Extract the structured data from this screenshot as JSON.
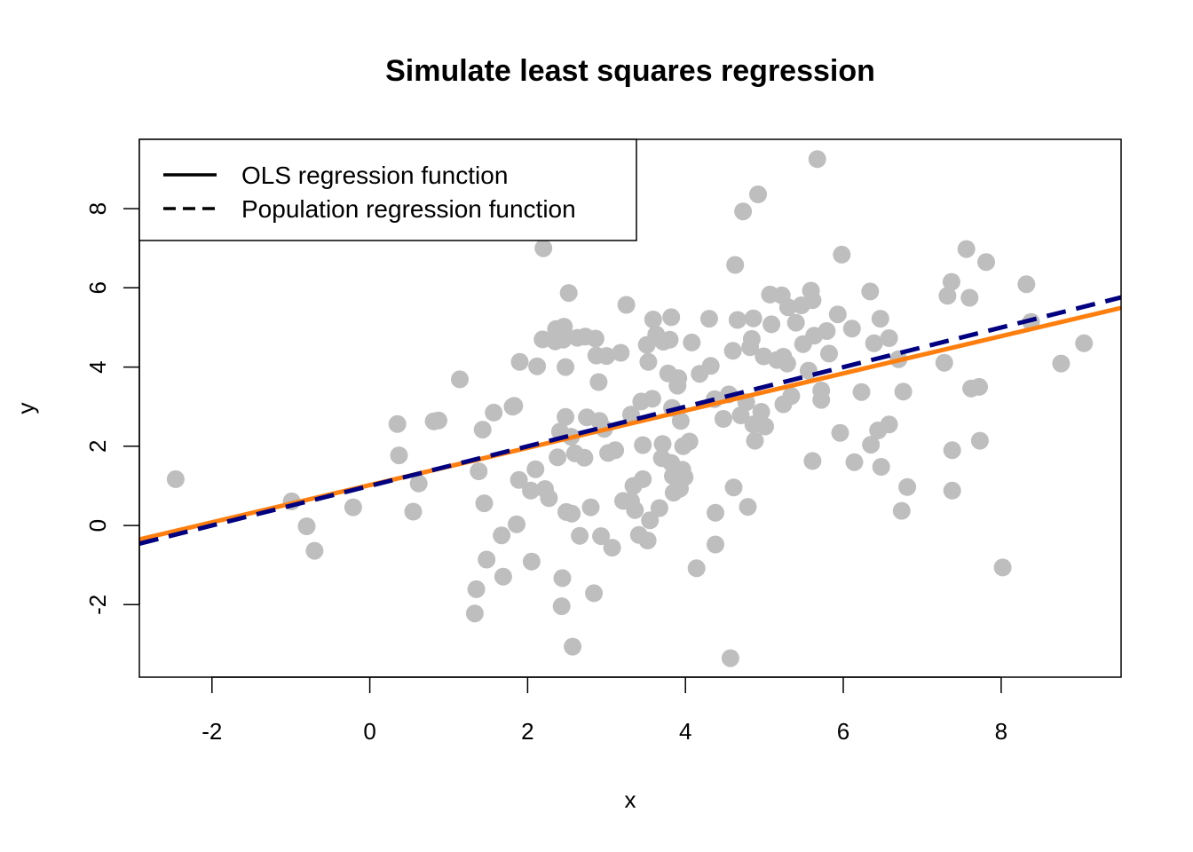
{
  "chart_data": {
    "type": "scatter",
    "title": "Simulate least squares regression",
    "xlabel": "x",
    "ylabel": "y",
    "xlim": [
      -2.92,
      9.52
    ],
    "ylim": [
      -3.83,
      9.75
    ],
    "x_ticks": [
      -2,
      0,
      2,
      4,
      6,
      8
    ],
    "y_ticks": [
      -2,
      0,
      2,
      4,
      6,
      8
    ],
    "x_tick_labels": [
      "-2",
      "0",
      "2",
      "4",
      "6",
      "8"
    ],
    "y_tick_labels": [
      "-2",
      "0",
      "2",
      "4",
      "6",
      "8"
    ],
    "grid": false,
    "legend_position": "top-left",
    "point_color": "#bebebe",
    "points": [
      [
        -2.46,
        1.17
      ],
      [
        -0.99,
        0.61
      ],
      [
        -0.8,
        -0.02
      ],
      [
        -0.7,
        -0.64
      ],
      [
        -0.21,
        0.46
      ],
      [
        0.35,
        2.56
      ],
      [
        0.37,
        1.77
      ],
      [
        0.55,
        0.35
      ],
      [
        0.62,
        1.06
      ],
      [
        0.81,
        2.63
      ],
      [
        0.87,
        2.65
      ],
      [
        1.14,
        3.69
      ],
      [
        1.33,
        -2.22
      ],
      [
        1.35,
        -1.61
      ],
      [
        1.38,
        1.37
      ],
      [
        1.43,
        2.42
      ],
      [
        1.45,
        0.56
      ],
      [
        1.48,
        -0.86
      ],
      [
        1.57,
        2.85
      ],
      [
        1.67,
        -0.25
      ],
      [
        1.69,
        -1.29
      ],
      [
        1.81,
        3.0
      ],
      [
        1.83,
        3.02
      ],
      [
        1.86,
        0.03
      ],
      [
        1.89,
        1.15
      ],
      [
        1.9,
        4.13
      ],
      [
        2.04,
        0.88
      ],
      [
        2.05,
        -0.91
      ],
      [
        2.1,
        1.42
      ],
      [
        2.12,
        4.02
      ],
      [
        2.19,
        4.7
      ],
      [
        2.2,
        7.0
      ],
      [
        2.22,
        0.92
      ],
      [
        2.27,
        0.69
      ],
      [
        2.35,
        4.65
      ],
      [
        2.36,
        4.96
      ],
      [
        2.38,
        1.72
      ],
      [
        2.41,
        2.37
      ],
      [
        2.43,
        -2.04
      ],
      [
        2.44,
        -1.33
      ],
      [
        2.45,
        4.69
      ],
      [
        2.46,
        5.02
      ],
      [
        2.48,
        4.0
      ],
      [
        2.48,
        2.74
      ],
      [
        2.49,
        0.34
      ],
      [
        2.52,
        5.87
      ],
      [
        2.55,
        2.24
      ],
      [
        2.56,
        0.3
      ],
      [
        2.57,
        -3.06
      ],
      [
        2.6,
        1.82
      ],
      [
        2.63,
        4.74
      ],
      [
        2.66,
        -0.26
      ],
      [
        2.72,
        1.71
      ],
      [
        2.73,
        4.77
      ],
      [
        2.75,
        2.73
      ],
      [
        2.8,
        0.46
      ],
      [
        2.84,
        -1.71
      ],
      [
        2.86,
        4.72
      ],
      [
        2.87,
        4.29
      ],
      [
        2.9,
        3.62
      ],
      [
        2.91,
        2.64
      ],
      [
        2.93,
        -0.27
      ],
      [
        2.97,
        2.44
      ],
      [
        3.0,
        4.28
      ],
      [
        3.02,
        1.83
      ],
      [
        3.07,
        -0.56
      ],
      [
        3.11,
        1.9
      ],
      [
        3.18,
        4.36
      ],
      [
        3.21,
        0.62
      ],
      [
        3.25,
        5.57
      ],
      [
        3.31,
        0.62
      ],
      [
        3.31,
        2.8
      ],
      [
        3.34,
        1.0
      ],
      [
        3.36,
        0.39
      ],
      [
        3.41,
        -0.24
      ],
      [
        3.44,
        3.13
      ],
      [
        3.46,
        2.03
      ],
      [
        3.46,
        1.17
      ],
      [
        3.51,
        4.56
      ],
      [
        3.52,
        -0.38
      ],
      [
        3.53,
        4.13
      ],
      [
        3.55,
        0.13
      ],
      [
        3.58,
        3.2
      ],
      [
        3.59,
        5.2
      ],
      [
        3.63,
        4.82
      ],
      [
        3.67,
        0.44
      ],
      [
        3.7,
        1.7
      ],
      [
        3.71,
        2.06
      ],
      [
        3.72,
        4.64
      ],
      [
        3.78,
        3.84
      ],
      [
        3.8,
        4.69
      ],
      [
        3.82,
        1.58
      ],
      [
        3.82,
        5.26
      ],
      [
        3.83,
        2.97
      ],
      [
        3.84,
        1.25
      ],
      [
        3.85,
        0.83
      ],
      [
        3.9,
        3.53
      ],
      [
        3.91,
        3.72
      ],
      [
        3.93,
        0.93
      ],
      [
        3.94,
        2.64
      ],
      [
        3.96,
        1.41
      ],
      [
        3.97,
        2.0
      ],
      [
        3.99,
        1.22
      ],
      [
        4.05,
        2.12
      ],
      [
        4.08,
        4.62
      ],
      [
        4.14,
        -1.08
      ],
      [
        4.18,
        3.83
      ],
      [
        4.3,
        5.22
      ],
      [
        4.32,
        4.03
      ],
      [
        4.37,
        3.19
      ],
      [
        4.38,
        0.32
      ],
      [
        4.38,
        -0.48
      ],
      [
        4.48,
        2.69
      ],
      [
        4.55,
        3.31
      ],
      [
        4.57,
        -3.35
      ],
      [
        4.6,
        4.41
      ],
      [
        4.61,
        0.96
      ],
      [
        4.63,
        6.58
      ],
      [
        4.66,
        5.19
      ],
      [
        4.7,
        2.78
      ],
      [
        4.73,
        7.93
      ],
      [
        4.77,
        3.11
      ],
      [
        4.79,
        0.47
      ],
      [
        4.82,
        4.5
      ],
      [
        4.84,
        4.71
      ],
      [
        4.86,
        2.55
      ],
      [
        4.86,
        5.23
      ],
      [
        4.88,
        2.14
      ],
      [
        4.92,
        8.36
      ],
      [
        4.96,
        2.87
      ],
      [
        4.99,
        4.27
      ],
      [
        5.01,
        2.5
      ],
      [
        5.07,
        5.83
      ],
      [
        5.09,
        5.08
      ],
      [
        5.16,
        4.18
      ],
      [
        5.22,
        5.81
      ],
      [
        5.24,
        4.26
      ],
      [
        5.24,
        3.06
      ],
      [
        5.29,
        4.09
      ],
      [
        5.3,
        5.51
      ],
      [
        5.34,
        3.27
      ],
      [
        5.4,
        5.12
      ],
      [
        5.47,
        5.56
      ],
      [
        5.49,
        4.58
      ],
      [
        5.56,
        3.91
      ],
      [
        5.59,
        5.93
      ],
      [
        5.61,
        5.69
      ],
      [
        5.61,
        1.63
      ],
      [
        5.63,
        4.79
      ],
      [
        5.67,
        9.25
      ],
      [
        5.72,
        3.17
      ],
      [
        5.72,
        3.41
      ],
      [
        5.79,
        4.91
      ],
      [
        5.82,
        4.34
      ],
      [
        5.93,
        5.33
      ],
      [
        5.96,
        2.34
      ],
      [
        5.98,
        6.84
      ],
      [
        6.11,
        4.97
      ],
      [
        6.14,
        1.6
      ],
      [
        6.23,
        3.37
      ],
      [
        6.34,
        5.91
      ],
      [
        6.35,
        2.04
      ],
      [
        6.39,
        4.6
      ],
      [
        6.44,
        2.4
      ],
      [
        6.47,
        5.22
      ],
      [
        6.48,
        1.48
      ],
      [
        6.58,
        4.73
      ],
      [
        6.58,
        2.55
      ],
      [
        6.7,
        4.2
      ],
      [
        6.74,
        0.37
      ],
      [
        6.76,
        3.38
      ],
      [
        6.81,
        0.97
      ],
      [
        7.28,
        4.11
      ],
      [
        7.32,
        5.8
      ],
      [
        7.37,
        6.15
      ],
      [
        7.38,
        1.9
      ],
      [
        7.38,
        0.88
      ],
      [
        7.56,
        6.98
      ],
      [
        7.6,
        5.75
      ],
      [
        7.62,
        3.46
      ],
      [
        7.72,
        3.5
      ],
      [
        7.73,
        2.14
      ],
      [
        7.81,
        6.65
      ],
      [
        8.02,
        -1.06
      ],
      [
        8.32,
        6.09
      ],
      [
        8.38,
        5.14
      ],
      [
        8.76,
        4.09
      ],
      [
        9.05,
        4.6
      ]
    ],
    "series": [
      {
        "name": "OLS regression function",
        "type": "line",
        "style": "solid",
        "color": "#ff7f0e",
        "intercept": 1.02,
        "slope": 0.47
      },
      {
        "name": "Population regression function",
        "type": "line",
        "style": "dashed",
        "color": "#000080",
        "intercept": 1.0,
        "slope": 0.5
      }
    ],
    "legend": [
      {
        "label": "OLS regression function",
        "style": "solid",
        "color": "#000000"
      },
      {
        "label": "Population regression function",
        "style": "dashed",
        "color": "#000000"
      }
    ]
  }
}
